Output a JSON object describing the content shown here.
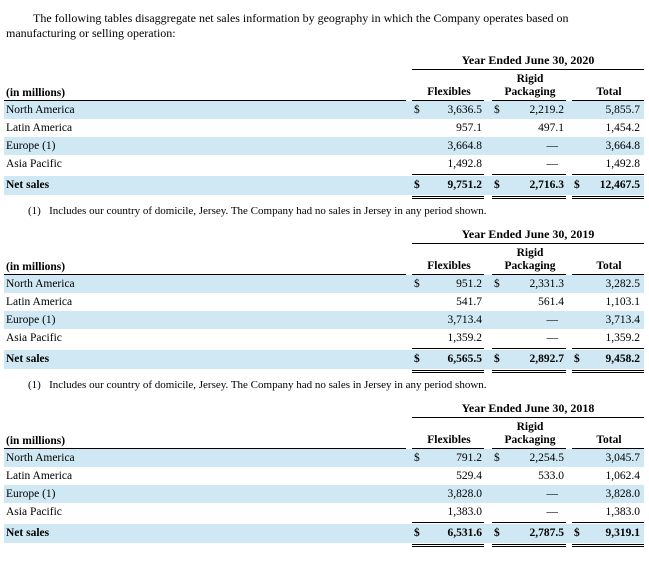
{
  "intro": "The following tables disaggregate net sales information by geography in which the Company operates based on manufacturing or selling operation:",
  "columns": {
    "unit": "(in millions)",
    "flexibles": "Flexibles",
    "rigid_line1": "Rigid",
    "rigid_line2": "Packaging",
    "total": "Total"
  },
  "footnote": "(1)   Includes our country of domicile, Jersey. The Company had no sales in Jersey in any period shown.",
  "currency": "$",
  "tables": [
    {
      "period": "Year Ended June 30, 2020",
      "rows": [
        {
          "label": "North America",
          "flexibles": "3,636.5",
          "rigid": "2,219.2",
          "total": "5,855.7"
        },
        {
          "label": "Latin America",
          "flexibles": "957.1",
          "rigid": "497.1",
          "total": "1,454.2"
        },
        {
          "label": "Europe (1)",
          "flexibles": "3,664.8",
          "rigid": "—",
          "total": "3,664.8"
        },
        {
          "label": "Asia Pacific",
          "flexibles": "1,492.8",
          "rigid": "—",
          "total": "1,492.8"
        }
      ],
      "total_row": {
        "label": "Net sales",
        "flexibles": "9,751.2",
        "rigid": "2,716.3",
        "total": "12,467.5"
      }
    },
    {
      "period": "Year Ended June 30, 2019",
      "rows": [
        {
          "label": "North America",
          "flexibles": "951.2",
          "rigid": "2,331.3",
          "total": "3,282.5"
        },
        {
          "label": "Latin America",
          "flexibles": "541.7",
          "rigid": "561.4",
          "total": "1,103.1"
        },
        {
          "label": "Europe (1)",
          "flexibles": "3,713.4",
          "rigid": "—",
          "total": "3,713.4"
        },
        {
          "label": "Asia Pacific",
          "flexibles": "1,359.2",
          "rigid": "—",
          "total": "1,359.2"
        }
      ],
      "total_row": {
        "label": "Net sales",
        "flexibles": "6,565.5",
        "rigid": "2,892.7",
        "total": "9,458.2"
      }
    },
    {
      "period": "Year Ended June 30, 2018",
      "rows": [
        {
          "label": "North America",
          "flexibles": "791.2",
          "rigid": "2,254.5",
          "total": "3,045.7"
        },
        {
          "label": "Latin America",
          "flexibles": "529.4",
          "rigid": "533.0",
          "total": "1,062.4"
        },
        {
          "label": "Europe (1)",
          "flexibles": "3,828.0",
          "rigid": "—",
          "total": "3,828.0"
        },
        {
          "label": "Asia Pacific",
          "flexibles": "1,383.0",
          "rigid": "—",
          "total": "1,383.0"
        }
      ],
      "total_row": {
        "label": "Net sales",
        "flexibles": "6,531.6",
        "rigid": "2,787.5",
        "total": "9,319.1"
      }
    }
  ]
}
